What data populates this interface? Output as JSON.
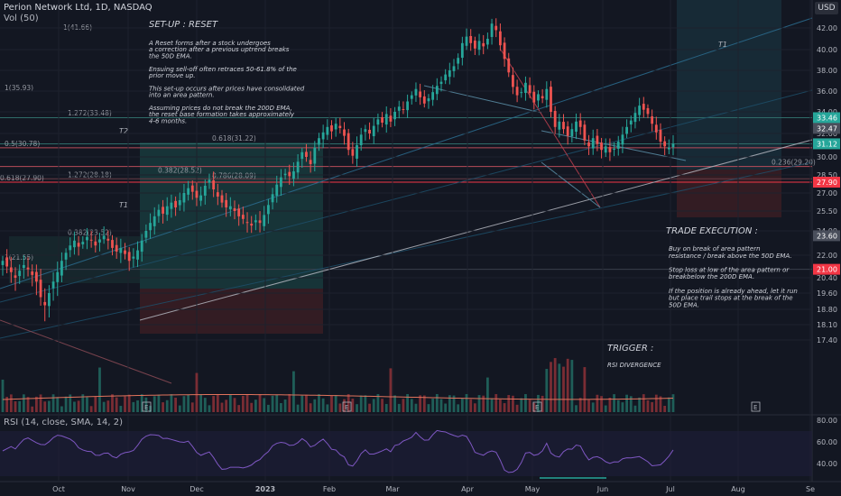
{
  "header": {
    "symbol_line": "Perion Network Ltd, 1D, NASDAQ",
    "volume_line": "Vol (50)",
    "currency": "USD",
    "rsi_line": "RSI (14, close, SMA, 14, 2)"
  },
  "notes": {
    "setup_title": "SET-UP : RESET",
    "setup_lines": [
      "A Reset forms after a stock undergoes",
      "a correction after a previous uptrend breaks",
      "the 50D EMA.",
      "",
      "Ensuing sell-off often retraces 50-61.8% of the",
      "prior move up.",
      "",
      "This set-up occurs after prices have consolidated",
      "into an area pattern.",
      "",
      "Assuming prices do not break the 200D EMA,",
      "the reset base formation takes approximately",
      "4-6 months."
    ],
    "execution_title": "TRADE EXECUTION :",
    "execution_lines": [
      "Buy on break of area pattern",
      "resistance / break above the 50D EMA.",
      "",
      "Stop loss at low of the area pattern or",
      "breakbelow the 200D EMA.",
      "",
      "If the position is already ahead, let it run",
      "but place trail stops at the break of the",
      "50D EMA."
    ],
    "trigger_title": "TRIGGER :",
    "trigger_text": "RSI DIVERGENCE"
  },
  "chart_data": {
    "type": "candlestick",
    "title": "Perion Network Ltd, 1D, NASDAQ",
    "price_axis": {
      "ticks": [
        42.0,
        40.0,
        38.0,
        36.0,
        34.0,
        32.0,
        30.0,
        28.5,
        27.0,
        25.5,
        24.0,
        22.0,
        20.4,
        19.6,
        18.8,
        18.1,
        17.4
      ],
      "tick_labels": [
        "42.00",
        "40.00",
        "38.00",
        "36.00",
        "34.00",
        "32.00",
        "30.00",
        "28.50",
        "27.00",
        "25.50",
        "24.00",
        "22.00",
        "20.40",
        "19.60",
        "18.80",
        "18.10",
        "17.40"
      ]
    },
    "rsi_axis": {
      "ticks": [
        80,
        60,
        40
      ],
      "tick_labels": [
        "80.00",
        "60.00",
        "40.00"
      ]
    },
    "x_axis": [
      "Oct",
      "Nov",
      "Dec",
      "2023",
      "Feb",
      "Mar",
      "Apr",
      "May",
      "Jun",
      "Jul",
      "Aug",
      "Se"
    ],
    "price_badges": [
      {
        "value": 33.46,
        "label": "33.46",
        "color": "#26a69a"
      },
      {
        "value": 32.47,
        "label": "32.47",
        "color": "#4a4f5c"
      },
      {
        "value": 31.12,
        "label": "31.12",
        "color": "#26a69a"
      },
      {
        "value": 27.9,
        "label": "27.90",
        "color": "#f23645"
      },
      {
        "value": 23.6,
        "label": "23.60",
        "color": "#4a4f5c"
      },
      {
        "value": 21.0,
        "label": "21.00",
        "color": "#f23645"
      }
    ],
    "fib_labels": [
      {
        "text": "1(41.66)",
        "value": 41.66
      },
      {
        "text": "1(35.93)",
        "value": 35.93
      },
      {
        "text": "1.272(33.48)",
        "value": 33.48
      },
      {
        "text": "0.5(30.78)",
        "value": 30.78
      },
      {
        "text": "0.618(31.22)",
        "value": 31.22
      },
      {
        "text": "0.236(29.20)",
        "value": 29.2
      },
      {
        "text": "0.382(28.52)",
        "value": 28.52
      },
      {
        "text": "1.272(28.18)",
        "value": 28.18
      },
      {
        "text": "0.786(28.09)",
        "value": 28.09
      },
      {
        "text": "0.618(27.90)",
        "value": 27.9
      },
      {
        "text": "0.382(23.52)",
        "value": 23.52
      },
      {
        "text": "1(21.55)",
        "value": 21.55
      }
    ],
    "markers": [
      {
        "text": "T2",
        "value": 33.5
      },
      {
        "text": "T1",
        "value": 28.7
      },
      {
        "text": "T1",
        "value": 42.0
      }
    ],
    "events": [
      "E",
      "E",
      "E",
      "E"
    ],
    "closes": [
      21.6,
      21.2,
      20.8,
      20.4,
      20.9,
      21.3,
      21.0,
      20.6,
      20.2,
      19.4,
      19.0,
      19.6,
      20.2,
      20.8,
      21.6,
      22.2,
      22.8,
      23.2,
      22.7,
      23.1,
      23.5,
      23.2,
      22.8,
      23.3,
      23.6,
      23.2,
      22.6,
      22.3,
      22.6,
      22.1,
      21.6,
      21.9,
      22.4,
      23.2,
      24.0,
      24.6,
      25.1,
      25.6,
      25.3,
      25.9,
      26.2,
      25.8,
      26.4,
      27.0,
      27.4,
      27.1,
      26.6,
      26.8,
      27.6,
      28.1,
      27.3,
      26.7,
      26.2,
      25.8,
      25.9,
      25.5,
      25.1,
      24.9,
      24.6,
      24.4,
      24.8,
      24.6,
      25.2,
      26.0,
      26.9,
      27.7,
      28.3,
      28.6,
      28.4,
      28.8,
      29.6,
      30.4,
      30.0,
      29.4,
      30.8,
      31.6,
      32.1,
      32.6,
      32.2,
      32.9,
      32.5,
      31.8,
      30.6,
      30.1,
      31.0,
      31.9,
      32.4,
      32.0,
      32.7,
      33.3,
      33.0,
      33.8,
      33.1,
      34.0,
      34.5,
      34.2,
      35.0,
      35.6,
      36.2,
      35.4,
      34.8,
      35.3,
      35.9,
      36.5,
      36.9,
      37.6,
      38.0,
      38.4,
      39.2,
      40.6,
      41.2,
      40.6,
      40.1,
      40.8,
      40.3,
      41.0,
      42.4,
      41.8,
      40.4,
      39.1,
      37.8,
      36.4,
      35.6,
      35.9,
      36.8,
      35.8,
      34.9,
      35.7,
      35.3,
      36.2,
      34.0,
      32.6,
      33.1,
      32.4,
      31.8,
      32.4,
      33.1,
      32.6,
      31.4,
      30.9,
      31.6,
      31.1,
      30.6,
      30.9,
      30.4,
      30.7,
      31.3,
      31.9,
      32.6,
      33.2,
      33.9,
      34.6,
      34.2,
      33.8,
      32.9,
      32.1,
      31.3,
      30.9,
      30.8,
      31.12
    ]
  }
}
